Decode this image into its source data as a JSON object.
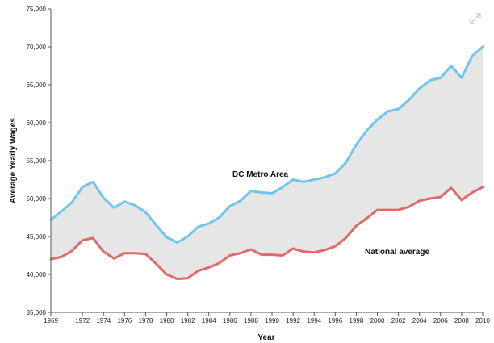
{
  "chart_data": {
    "type": "line",
    "title": "",
    "xlabel": "Year",
    "ylabel": "Average Yearly Wages",
    "xlim": [
      1969,
      2010
    ],
    "ylim": [
      35000,
      75000
    ],
    "x_ticks": [
      1969,
      1972,
      1974,
      1976,
      1978,
      1980,
      1982,
      1984,
      1986,
      1988,
      1990,
      1992,
      1994,
      1996,
      1998,
      2000,
      2002,
      2004,
      2006,
      2008,
      2010
    ],
    "y_ticks": [
      35000,
      40000,
      45000,
      50000,
      55000,
      60000,
      65000,
      70000,
      75000
    ],
    "y_tick_labels": [
      "35,000",
      "40,000",
      "45,000",
      "50,000",
      "55,000",
      "60,000",
      "65,000",
      "70,000",
      "75,000"
    ],
    "grid": false,
    "fill_between_series": true,
    "x": [
      1969,
      1970,
      1971,
      1972,
      1973,
      1974,
      1975,
      1976,
      1977,
      1978,
      1979,
      1980,
      1981,
      1982,
      1983,
      1984,
      1985,
      1986,
      1987,
      1988,
      1989,
      1990,
      1991,
      1992,
      1993,
      1994,
      1995,
      1996,
      1997,
      1998,
      1999,
      2000,
      2001,
      2002,
      2003,
      2004,
      2005,
      2006,
      2007,
      2008,
      2009,
      2010
    ],
    "series": [
      {
        "name": "DC Metro Area",
        "color": "#6ec6ec",
        "values": [
          47200,
          48300,
          49500,
          51500,
          52200,
          50100,
          48800,
          49600,
          49100,
          48200,
          46500,
          44900,
          44200,
          45000,
          46300,
          46700,
          47500,
          49000,
          49700,
          51000,
          50800,
          50700,
          51500,
          52500,
          52200,
          52500,
          52800,
          53300,
          54700,
          57100,
          59000,
          60400,
          61500,
          61800,
          63000,
          64500,
          65600,
          65900,
          67500,
          65900,
          68800,
          70000
        ]
      },
      {
        "name": "National average",
        "color": "#e06a6a",
        "values": [
          42000,
          42300,
          43100,
          44500,
          44800,
          43000,
          42100,
          42800,
          42800,
          42700,
          41400,
          40000,
          39400,
          39500,
          40500,
          40900,
          41500,
          42500,
          42800,
          43300,
          42600,
          42600,
          42500,
          43400,
          43000,
          42900,
          43200,
          43700,
          44800,
          46400,
          47400,
          48500,
          48500,
          48500,
          48900,
          49700,
          50000,
          50200,
          51400,
          49800,
          50800,
          51500
        ]
      }
    ],
    "fill_color": "#e6e6e6"
  },
  "icons": {
    "expand": "expand-icon"
  }
}
